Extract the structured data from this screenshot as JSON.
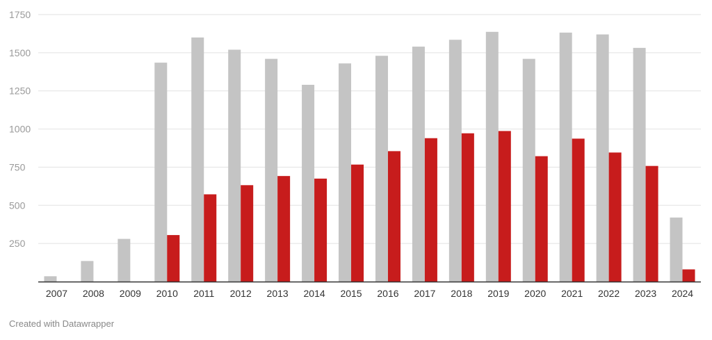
{
  "chart_data": {
    "type": "bar",
    "categories": [
      "2007",
      "2008",
      "2009",
      "2010",
      "2011",
      "2012",
      "2013",
      "2014",
      "2015",
      "2016",
      "2017",
      "2018",
      "2019",
      "2020",
      "2021",
      "2022",
      "2023",
      "2024"
    ],
    "series": [
      {
        "color": "#c4c4c4",
        "values": [
          35,
          135,
          280,
          1435,
          1600,
          1520,
          1460,
          1290,
          1430,
          1480,
          1540,
          1585,
          1637,
          1460,
          1632,
          1620,
          1532,
          420
        ]
      },
      {
        "color": "#c71c1c",
        "values": [
          0,
          0,
          0,
          305,
          572,
          632,
          692,
          675,
          767,
          855,
          940,
          972,
          987,
          822,
          937,
          846,
          758,
          80
        ]
      }
    ],
    "yticks": [
      "250",
      "500",
      "750",
      "1000",
      "1250",
      "1500",
      "1750"
    ],
    "ylim": [
      0,
      1750
    ],
    "grid": true,
    "legend": "none"
  },
  "footer": {
    "credit": "Created with Datawrapper"
  }
}
